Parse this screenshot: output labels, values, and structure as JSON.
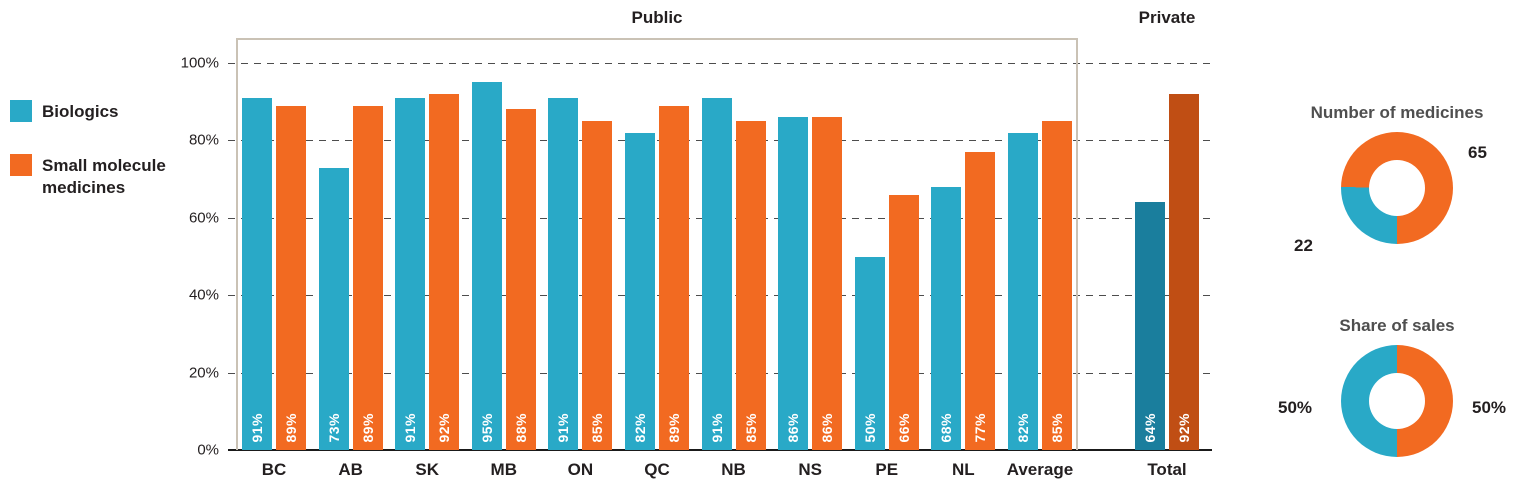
{
  "colors": {
    "biologics": "#29a9c7",
    "small_molecule": "#f26a21",
    "biologics_dark": "#1a7e9d",
    "small_molecule_dark": "#c04e14",
    "box_border": "#cac2b5",
    "axis_text": "#231f20"
  },
  "legend": {
    "items": [
      {
        "label": "Biologics",
        "color_key": "biologics"
      },
      {
        "label": "Small molecule medicines",
        "color_key": "small_molecule"
      }
    ]
  },
  "chart_data": {
    "type": "bar",
    "title_public": "Public",
    "title_private": "Private",
    "categories": [
      "BC",
      "AB",
      "SK",
      "MB",
      "ON",
      "QC",
      "NB",
      "NS",
      "PE",
      "NL",
      "Average"
    ],
    "series": [
      {
        "name": "Biologics",
        "values": [
          91,
          73,
          91,
          95,
          91,
          82,
          91,
          86,
          50,
          68,
          82
        ]
      },
      {
        "name": "Small molecule medicines",
        "values": [
          89,
          89,
          92,
          88,
          85,
          89,
          85,
          86,
          66,
          77,
          85
        ]
      }
    ],
    "private": {
      "category": "Total",
      "biologics": 64,
      "small_molecule": 92
    },
    "value_suffix": "%",
    "y_ticks": [
      "100%",
      "80%",
      "60%",
      "40%",
      "20%",
      "0%"
    ],
    "ylim": [
      0,
      100
    ],
    "grid": "dashed horizontal"
  },
  "donuts": [
    {
      "title": "Number of medicines",
      "segments": [
        {
          "name": "Small molecule medicines",
          "value": 65,
          "label": "65",
          "color_key": "small_molecule"
        },
        {
          "name": "Biologics",
          "value": 22,
          "label": "22",
          "color_key": "biologics"
        }
      ]
    },
    {
      "title": "Share of sales",
      "segments": [
        {
          "name": "Small molecule medicines",
          "value": 50,
          "label": "50%",
          "color_key": "small_molecule"
        },
        {
          "name": "Biologics",
          "value": 50,
          "label": "50%",
          "color_key": "biologics"
        }
      ]
    }
  ]
}
